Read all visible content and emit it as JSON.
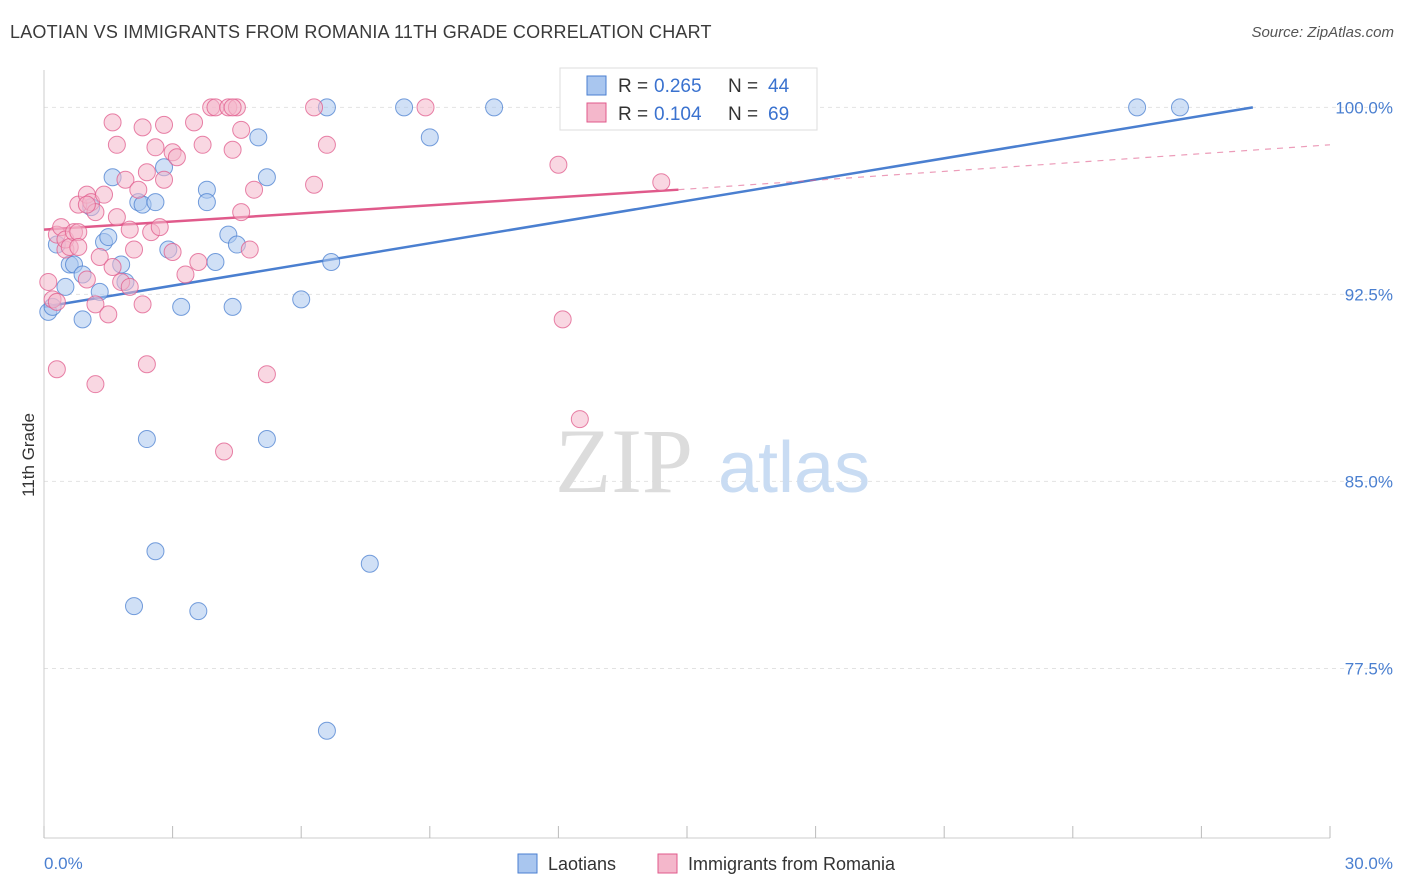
{
  "title": "LAOTIAN VS IMMIGRANTS FROM ROMANIA 11TH GRADE CORRELATION CHART",
  "source": "Source: ZipAtlas.com",
  "watermark": {
    "zip": "ZIP",
    "atlas": "atlas"
  },
  "chart_data": {
    "type": "scatter",
    "xlabel": "",
    "ylabel": "11th Grade",
    "xlim": [
      0,
      30
    ],
    "ylim": [
      70.7,
      101.5
    ],
    "x_tick_labels": [
      "0.0%",
      "30.0%"
    ],
    "y_ticks": [
      100.0,
      92.5,
      85.0,
      77.5
    ],
    "y_tick_labels": [
      "100.0%",
      "92.5%",
      "85.0%",
      "77.5%"
    ],
    "legend": {
      "position": "top-center",
      "entries": [
        {
          "r_label": "R =",
          "r_value": "0.265",
          "n_label": "N =",
          "n_value": "44"
        },
        {
          "r_label": "R =",
          "r_value": "0.104",
          "n_label": "N =",
          "n_value": "69"
        }
      ]
    },
    "series": [
      {
        "name": "Laotians",
        "color": "#4a7fd0",
        "fill": "#a9c6ef",
        "points": [
          [
            0.1,
            91.8
          ],
          [
            0.2,
            92.0
          ],
          [
            0.3,
            94.5
          ],
          [
            0.5,
            92.8
          ],
          [
            0.6,
            93.7
          ],
          [
            0.7,
            93.7
          ],
          [
            0.9,
            93.3
          ],
          [
            0.9,
            91.5
          ],
          [
            1.1,
            96.0
          ],
          [
            1.3,
            92.6
          ],
          [
            1.4,
            94.6
          ],
          [
            1.5,
            94.8
          ],
          [
            1.6,
            97.2
          ],
          [
            1.8,
            93.7
          ],
          [
            1.9,
            93.0
          ],
          [
            2.2,
            96.2
          ],
          [
            2.3,
            96.1
          ],
          [
            2.6,
            96.2
          ],
          [
            2.8,
            97.6
          ],
          [
            2.9,
            94.3
          ],
          [
            3.2,
            92.0
          ],
          [
            3.8,
            96.7
          ],
          [
            3.8,
            96.2
          ],
          [
            4.0,
            93.8
          ],
          [
            4.3,
            94.9
          ],
          [
            4.4,
            92.0
          ],
          [
            4.5,
            94.5
          ],
          [
            5.0,
            98.8
          ],
          [
            5.2,
            97.2
          ],
          [
            6.0,
            92.3
          ],
          [
            6.7,
            93.8
          ],
          [
            6.6,
            100.0
          ],
          [
            8.4,
            100.0
          ],
          [
            9.0,
            98.8
          ],
          [
            10.5,
            100.0
          ],
          [
            25.5,
            100.0
          ],
          [
            26.5,
            100.0
          ],
          [
            2.4,
            86.7
          ],
          [
            5.2,
            86.7
          ],
          [
            2.6,
            82.2
          ],
          [
            7.6,
            81.7
          ],
          [
            2.1,
            80.0
          ],
          [
            3.6,
            79.8
          ],
          [
            6.6,
            75.0
          ]
        ]
      },
      {
        "name": "Immigrants from Romania",
        "color": "#e05a8b",
        "fill": "#f4b7cb",
        "points": [
          [
            0.1,
            93.0
          ],
          [
            0.2,
            92.3
          ],
          [
            0.3,
            94.9
          ],
          [
            0.4,
            95.2
          ],
          [
            0.5,
            94.3
          ],
          [
            0.5,
            94.7
          ],
          [
            0.6,
            94.4
          ],
          [
            0.7,
            95.0
          ],
          [
            0.8,
            95.0
          ],
          [
            0.8,
            96.1
          ],
          [
            1.0,
            96.5
          ],
          [
            1.0,
            93.1
          ],
          [
            1.1,
            96.2
          ],
          [
            1.2,
            95.8
          ],
          [
            1.2,
            92.1
          ],
          [
            1.3,
            94.0
          ],
          [
            1.4,
            96.5
          ],
          [
            1.5,
            91.7
          ],
          [
            1.6,
            93.6
          ],
          [
            1.7,
            95.6
          ],
          [
            1.7,
            98.5
          ],
          [
            1.6,
            99.4
          ],
          [
            1.8,
            93.0
          ],
          [
            1.9,
            97.1
          ],
          [
            2.0,
            92.8
          ],
          [
            2.0,
            95.1
          ],
          [
            2.1,
            94.3
          ],
          [
            2.2,
            96.7
          ],
          [
            2.3,
            92.1
          ],
          [
            2.3,
            99.2
          ],
          [
            2.4,
            97.4
          ],
          [
            2.5,
            95.0
          ],
          [
            2.6,
            98.4
          ],
          [
            2.7,
            95.2
          ],
          [
            2.8,
            97.1
          ],
          [
            2.8,
            99.3
          ],
          [
            3.0,
            94.2
          ],
          [
            3.0,
            98.2
          ],
          [
            3.1,
            98.0
          ],
          [
            3.3,
            93.3
          ],
          [
            3.5,
            99.4
          ],
          [
            3.6,
            93.8
          ],
          [
            3.7,
            98.5
          ],
          [
            3.9,
            100.0
          ],
          [
            4.0,
            100.0
          ],
          [
            4.3,
            100.0
          ],
          [
            4.4,
            98.3
          ],
          [
            4.5,
            100.0
          ],
          [
            4.6,
            95.8
          ],
          [
            4.6,
            99.1
          ],
          [
            4.8,
            94.3
          ],
          [
            4.9,
            96.7
          ],
          [
            6.3,
            96.9
          ],
          [
            6.3,
            100.0
          ],
          [
            6.6,
            98.5
          ],
          [
            8.9,
            100.0
          ],
          [
            12.0,
            97.7
          ],
          [
            12.1,
            91.5
          ],
          [
            14.4,
            97.0
          ],
          [
            0.3,
            89.5
          ],
          [
            1.2,
            88.9
          ],
          [
            2.4,
            89.7
          ],
          [
            4.2,
            86.2
          ],
          [
            5.2,
            89.3
          ],
          [
            12.5,
            87.5
          ],
          [
            0.3,
            92.2
          ],
          [
            0.8,
            94.4
          ],
          [
            1.0,
            96.1
          ],
          [
            4.4,
            100.0
          ]
        ]
      }
    ],
    "trend_lines": [
      {
        "series": "Laotians",
        "from": [
          0,
          92.0
        ],
        "to": [
          28.2,
          100.0
        ],
        "style": "solid"
      },
      {
        "series": "Immigrants from Romania",
        "from": [
          0,
          95.1
        ],
        "to": [
          14.8,
          96.7
        ],
        "style": "solid"
      },
      {
        "series": "Immigrants from Romania",
        "from": [
          14.8,
          96.7
        ],
        "to": [
          30,
          98.5
        ],
        "style": "dashed"
      }
    ]
  },
  "bottom_legend": {
    "item1": "Laotians",
    "item2": "Immigrants from Romania"
  }
}
